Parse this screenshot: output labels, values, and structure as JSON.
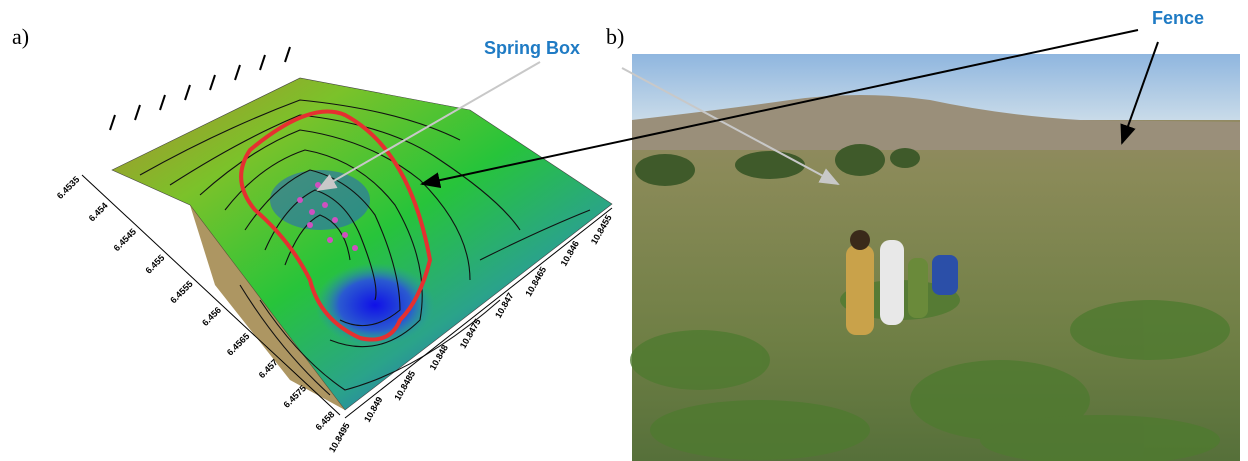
{
  "panel_a": {
    "label": "a)",
    "y_ticks": [
      "6.4535",
      "6.454",
      "6.4545",
      "6.455",
      "6.4555",
      "6.456",
      "6.4565",
      "6.457",
      "6.4575",
      "6.458"
    ],
    "x_ticks": [
      "10.8495",
      "10.849",
      "10.8485",
      "10.848",
      "10.8475",
      "10.847",
      "10.8465",
      "10.846",
      "10.8455"
    ]
  },
  "panel_b": {
    "label": "b)"
  },
  "callouts": {
    "spring_box": "Spring Box",
    "fence": "Fence"
  }
}
